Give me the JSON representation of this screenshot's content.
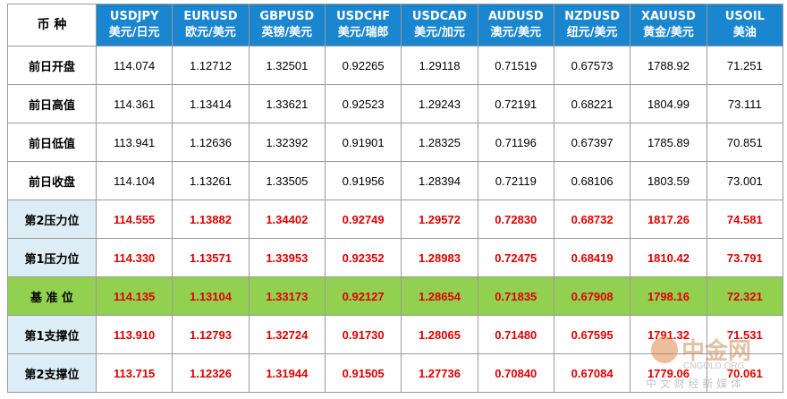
{
  "table": {
    "corner": "币 种",
    "columns": [
      {
        "code": "USDJPY",
        "name": "美元/日元"
      },
      {
        "code": "EURUSD",
        "name": "欧元/美元"
      },
      {
        "code": "GBPUSD",
        "name": "英镑/美元"
      },
      {
        "code": "USDCHF",
        "name": "美元/瑞郎"
      },
      {
        "code": "USDCAD",
        "name": "美元/加元"
      },
      {
        "code": "AUDUSD",
        "name": "澳元/美元"
      },
      {
        "code": "NZDUSD",
        "name": "纽元/美元"
      },
      {
        "code": "XAUUSD",
        "name": "黄金/美元"
      },
      {
        "code": "USOIL",
        "name": "美油"
      }
    ],
    "rows": [
      {
        "label": "前日开盘",
        "values": [
          "114.074",
          "1.12712",
          "1.32501",
          "0.92265",
          "1.29118",
          "0.71519",
          "0.67573",
          "1788.92",
          "71.251"
        ]
      },
      {
        "label": "前日高值",
        "values": [
          "114.361",
          "1.13414",
          "1.33621",
          "0.92523",
          "1.29243",
          "0.72191",
          "0.68221",
          "1804.99",
          "73.111"
        ]
      },
      {
        "label": "前日低值",
        "values": [
          "113.941",
          "1.12636",
          "1.32392",
          "0.91901",
          "1.28325",
          "0.71196",
          "0.67397",
          "1785.89",
          "70.851"
        ]
      },
      {
        "label": "前日收盘",
        "values": [
          "114.104",
          "1.13261",
          "1.33505",
          "0.91956",
          "1.28394",
          "0.72119",
          "0.68106",
          "1803.59",
          "73.001"
        ]
      },
      {
        "label": "第2压力位",
        "values": [
          "114.555",
          "1.13882",
          "1.34402",
          "0.92749",
          "1.29572",
          "0.72830",
          "0.68732",
          "1817.26",
          "74.581"
        ]
      },
      {
        "label": "第1压力位",
        "values": [
          "114.330",
          "1.13571",
          "1.33953",
          "0.92352",
          "1.28983",
          "0.72475",
          "0.68419",
          "1810.42",
          "73.791"
        ]
      },
      {
        "label": "基 准 位",
        "values": [
          "114.135",
          "1.13104",
          "1.33173",
          "0.92127",
          "1.28654",
          "0.71835",
          "0.67908",
          "1798.16",
          "72.321"
        ]
      },
      {
        "label": "第1支撑位",
        "values": [
          "113.910",
          "1.12793",
          "1.32724",
          "0.91730",
          "1.28065",
          "0.71480",
          "0.67595",
          "1791.32",
          "71.531"
        ]
      },
      {
        "label": "第2支撑位",
        "values": [
          "113.715",
          "1.12326",
          "1.31944",
          "0.91505",
          "1.27736",
          "0.70840",
          "0.67084",
          "1779.06",
          "70.061"
        ]
      }
    ]
  },
  "watermark": {
    "title": "中金网",
    "domain": "CNGOLD.ORG",
    "tagline": "中 文 财 经 新 媒 体"
  }
}
